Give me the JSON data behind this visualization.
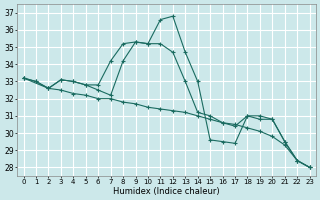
{
  "xlabel": "Humidex (Indice chaleur)",
  "background_color": "#cce8ea",
  "grid_color": "#ffffff",
  "line_color": "#1a6b60",
  "xlim": [
    -0.5,
    23.5
  ],
  "ylim": [
    27.5,
    37.5
  ],
  "yticks": [
    28,
    29,
    30,
    31,
    32,
    33,
    34,
    35,
    36,
    37
  ],
  "xticks": [
    0,
    1,
    2,
    3,
    4,
    5,
    6,
    7,
    8,
    9,
    10,
    11,
    12,
    13,
    14,
    15,
    16,
    17,
    18,
    19,
    20,
    21,
    22,
    23
  ],
  "series": [
    {
      "x": [
        0,
        1,
        2,
        3,
        4,
        5,
        6,
        7,
        8,
        9,
        10,
        11,
        12,
        13,
        14,
        15,
        16,
        17,
        18,
        19,
        20,
        21,
        22,
        23
      ],
      "y": [
        33.2,
        33.0,
        32.6,
        32.5,
        32.3,
        32.2,
        32.0,
        32.0,
        31.8,
        31.7,
        31.5,
        31.4,
        31.3,
        31.2,
        31.0,
        30.8,
        30.6,
        30.5,
        30.3,
        30.1,
        29.8,
        29.3,
        28.4,
        28.0
      ]
    },
    {
      "x": [
        0,
        1,
        2,
        3,
        4,
        5,
        6,
        7,
        8,
        9,
        10,
        11,
        12,
        13,
        14,
        15,
        16,
        17,
        18,
        19,
        20,
        21,
        22,
        23
      ],
      "y": [
        33.2,
        33.0,
        32.6,
        33.1,
        33.0,
        32.8,
        32.5,
        32.2,
        34.2,
        35.3,
        35.2,
        36.6,
        36.8,
        34.7,
        33.0,
        29.6,
        29.5,
        29.4,
        31.0,
        30.8,
        30.8,
        29.5,
        28.4,
        28.0
      ]
    },
    {
      "x": [
        0,
        2,
        3,
        4,
        5,
        6,
        7,
        8,
        9,
        10,
        11,
        12,
        13,
        14,
        15,
        16,
        17,
        18,
        19,
        20,
        21,
        22,
        23
      ],
      "y": [
        33.2,
        32.6,
        33.1,
        33.0,
        32.8,
        32.8,
        34.2,
        35.2,
        35.3,
        35.2,
        35.2,
        34.7,
        33.0,
        31.2,
        31.0,
        30.6,
        30.4,
        31.0,
        31.0,
        30.8,
        29.5,
        28.4,
        28.0
      ]
    }
  ]
}
